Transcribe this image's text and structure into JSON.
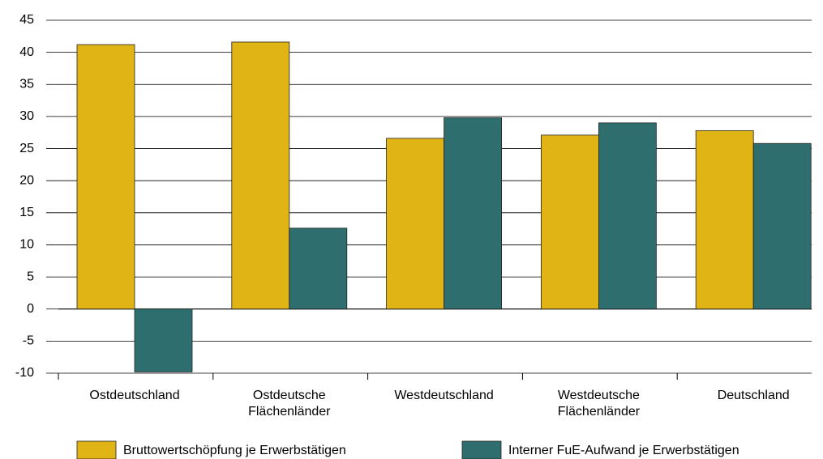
{
  "chart_data": {
    "type": "bar",
    "categories": [
      "Ostdeutschland",
      "Ostdeutsche Flächenländer",
      "Westdeutschland",
      "Westdeutsche Flächenländer",
      "Deutschland"
    ],
    "series": [
      {
        "name": "Bruttowertschöpfung je Erwerbstätigen",
        "color": "#e0b414",
        "values": [
          41.2,
          41.6,
          26.6,
          27.1,
          27.8
        ]
      },
      {
        "name": "Interner FuE-Aufwand je Erwerbstätigen",
        "color": "#2e6e6e",
        "values": [
          -9.8,
          12.6,
          29.8,
          29.0,
          25.8
        ]
      }
    ],
    "ylim": [
      -10,
      45
    ],
    "yticks": [
      -10,
      -5,
      0,
      5,
      10,
      15,
      20,
      25,
      30,
      35,
      40,
      45
    ],
    "grid": true
  }
}
